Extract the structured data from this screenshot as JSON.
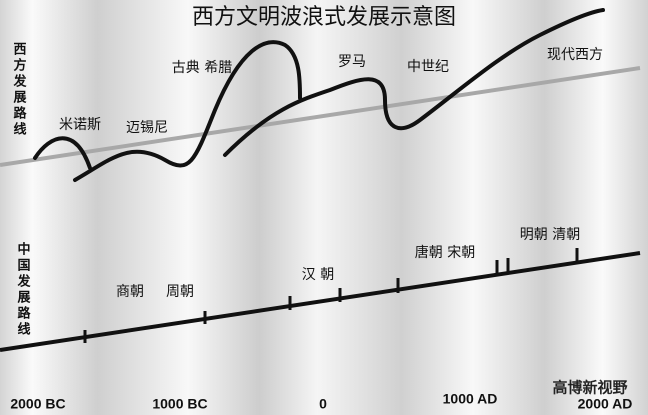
{
  "title": "西方文明波浪式发展示意图",
  "west_route_label": "西方发展路线",
  "china_route_label": "中国发展路线",
  "west_periods": [
    "米诺斯",
    "迈锡尼",
    "古典 希腊",
    "罗马",
    "中世纪",
    "现代西方"
  ],
  "china_periods": [
    "商朝",
    "周朝",
    "汉 朝",
    "唐朝 宋朝",
    "明朝 清朝"
  ],
  "timeline": [
    "2000 BC",
    "1000 BC",
    "0",
    "1000 AD",
    "2000 AD"
  ],
  "watermark": "高博新视野"
}
